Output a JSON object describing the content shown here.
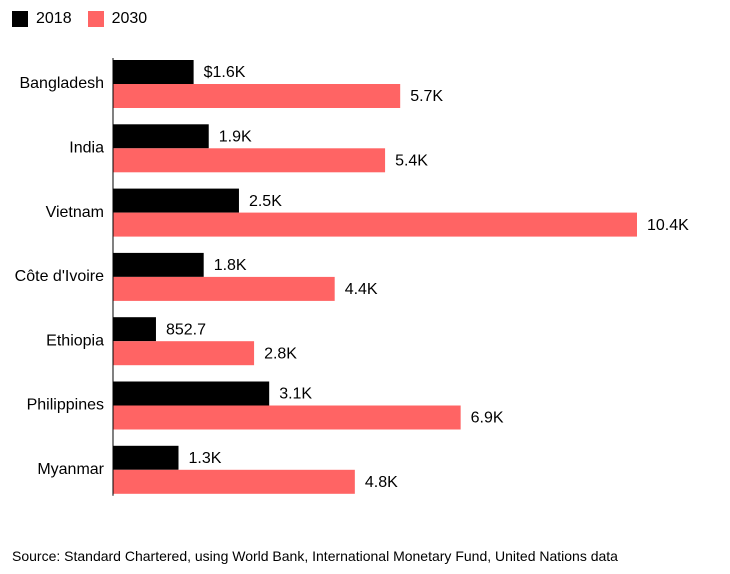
{
  "legend": {
    "items": [
      {
        "label": "2018",
        "color": "#000000"
      },
      {
        "label": "2030",
        "color": "#ff6464"
      }
    ]
  },
  "source": "Source: Standard Chartered, using World Bank, International Monetary Fund, United Nations data",
  "chart_data": {
    "type": "bar",
    "orientation": "horizontal",
    "categories": [
      "Bangladesh",
      "India",
      "Vietnam",
      "Côte d'Ivoire",
      "Ethiopia",
      "Philippines",
      "Myanmar"
    ],
    "series": [
      {
        "name": "2018",
        "color": "#000000",
        "values": [
          1600,
          1900,
          2500,
          1800,
          852.7,
          3100,
          1300
        ],
        "labels": [
          "$1.6K",
          "1.9K",
          "2.5K",
          "1.8K",
          "852.7",
          "3.1K",
          "1.3K"
        ]
      },
      {
        "name": "2030",
        "color": "#ff6464",
        "values": [
          5700,
          5400,
          10400,
          4400,
          2800,
          6900,
          4800
        ],
        "labels": [
          "5.7K",
          "5.4K",
          "10.4K",
          "4.4K",
          "2.8K",
          "6.9K",
          "4.8K"
        ]
      }
    ],
    "xlim": [
      0,
      10400
    ],
    "grid": false,
    "legend_position": "top-left"
  }
}
